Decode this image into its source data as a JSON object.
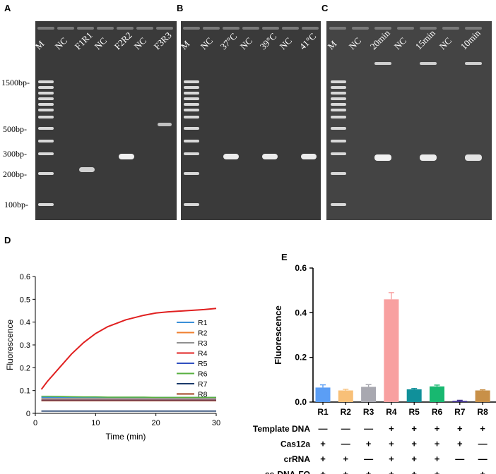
{
  "panels": {
    "A": "A",
    "B": "B",
    "C": "C",
    "D": "D",
    "E": "E"
  },
  "gel_a": {
    "lanes": [
      "M",
      "NC",
      "F1R1",
      "NC",
      "F2R2",
      "NC",
      "F3R3"
    ]
  },
  "gel_b": {
    "lanes": [
      "M",
      "NC",
      "37°C",
      "NC",
      "39°C",
      "NC",
      "41°C"
    ]
  },
  "gel_c": {
    "lanes": [
      "M",
      "NC",
      "20min",
      "NC",
      "15min",
      "NC",
      "10min"
    ]
  },
  "size_labels": [
    "1500bp-",
    "500bp-",
    "300bp-",
    "200bp-",
    "100bp-"
  ],
  "chart_data": [
    {
      "type": "line",
      "xlabel": "Time (min)",
      "ylabel": "Fluorescence",
      "xlim": [
        0,
        30
      ],
      "ylim": [
        0,
        0.6
      ],
      "xticks": [
        "0",
        "10",
        "20",
        "30"
      ],
      "yticks": [
        "0",
        "0.1",
        "0.2",
        "0.3",
        "0.4",
        "0.5",
        "0.6"
      ],
      "legend_position": "right",
      "x": [
        1,
        2,
        4,
        6,
        8,
        10,
        12,
        15,
        18,
        20,
        22,
        25,
        28,
        30
      ],
      "series": [
        {
          "name": "R1",
          "color": "#3a8fd8",
          "values": [
            0.07,
            0.07,
            0.07,
            0.07,
            0.07,
            0.07,
            0.07,
            0.07,
            0.07,
            0.07,
            0.07,
            0.07,
            0.07,
            0.07
          ]
        },
        {
          "name": "R2",
          "color": "#f08030",
          "values": [
            0.06,
            0.06,
            0.06,
            0.06,
            0.06,
            0.06,
            0.06,
            0.06,
            0.06,
            0.06,
            0.06,
            0.06,
            0.06,
            0.06
          ]
        },
        {
          "name": "R3",
          "color": "#909090",
          "values": [
            0.065,
            0.065,
            0.065,
            0.065,
            0.065,
            0.065,
            0.065,
            0.065,
            0.065,
            0.065,
            0.065,
            0.065,
            0.065,
            0.065
          ]
        },
        {
          "name": "R4",
          "color": "#e02020",
          "values": [
            0.105,
            0.14,
            0.2,
            0.26,
            0.31,
            0.35,
            0.38,
            0.41,
            0.43,
            0.44,
            0.445,
            0.45,
            0.455,
            0.46
          ]
        },
        {
          "name": "R5",
          "color": "#3050c0",
          "values": [
            0.058,
            0.058,
            0.058,
            0.058,
            0.058,
            0.058,
            0.058,
            0.058,
            0.058,
            0.058,
            0.058,
            0.058,
            0.058,
            0.058
          ]
        },
        {
          "name": "R6",
          "color": "#58b040",
          "values": [
            0.075,
            0.075,
            0.074,
            0.073,
            0.072,
            0.072,
            0.071,
            0.071,
            0.071,
            0.07,
            0.07,
            0.07,
            0.07,
            0.07
          ]
        },
        {
          "name": "R7",
          "color": "#1a3a6a",
          "values": [
            0.01,
            0.01,
            0.01,
            0.01,
            0.01,
            0.01,
            0.01,
            0.01,
            0.01,
            0.01,
            0.01,
            0.01,
            0.01,
            0.01
          ]
        },
        {
          "name": "R8",
          "color": "#a04020",
          "values": [
            0.055,
            0.055,
            0.055,
            0.055,
            0.055,
            0.055,
            0.055,
            0.055,
            0.055,
            0.055,
            0.055,
            0.055,
            0.055,
            0.055
          ]
        }
      ]
    },
    {
      "type": "bar",
      "ylabel": "Fluorescence",
      "ylim": [
        0,
        0.6
      ],
      "yticks": [
        "0.0",
        "0.2",
        "0.4",
        "0.6"
      ],
      "categories": [
        "R1",
        "R2",
        "R3",
        "R4",
        "R5",
        "R6",
        "R7",
        "R8"
      ],
      "values": [
        0.065,
        0.052,
        0.068,
        0.46,
        0.057,
        0.07,
        0.005,
        0.052
      ],
      "errors": [
        0.012,
        0.005,
        0.01,
        0.03,
        0.004,
        0.006,
        0.003,
        0.003
      ],
      "colors": [
        "#5b9ef5",
        "#f8c078",
        "#a8a8b0",
        "#f8a0a0",
        "#10909a",
        "#18b870",
        "#3a2a8a",
        "#c89048"
      ],
      "table": {
        "rows": [
          {
            "label": "Template DNA",
            "marks": [
              "—",
              "—",
              "—",
              "+",
              "+",
              "+",
              "+",
              "+"
            ]
          },
          {
            "label": "Cas12a",
            "marks": [
              "+",
              "—",
              "+",
              "+",
              "+",
              "+",
              "+",
              "—"
            ]
          },
          {
            "label": "crRNA",
            "marks": [
              "+",
              "+",
              "—",
              "+",
              "+",
              "+",
              "—",
              "—"
            ]
          },
          {
            "label": "ss-DNA-FQ",
            "marks": [
              "+",
              "+",
              "+",
              "+",
              "+",
              "+",
              "",
              "+"
            ]
          }
        ]
      }
    }
  ]
}
